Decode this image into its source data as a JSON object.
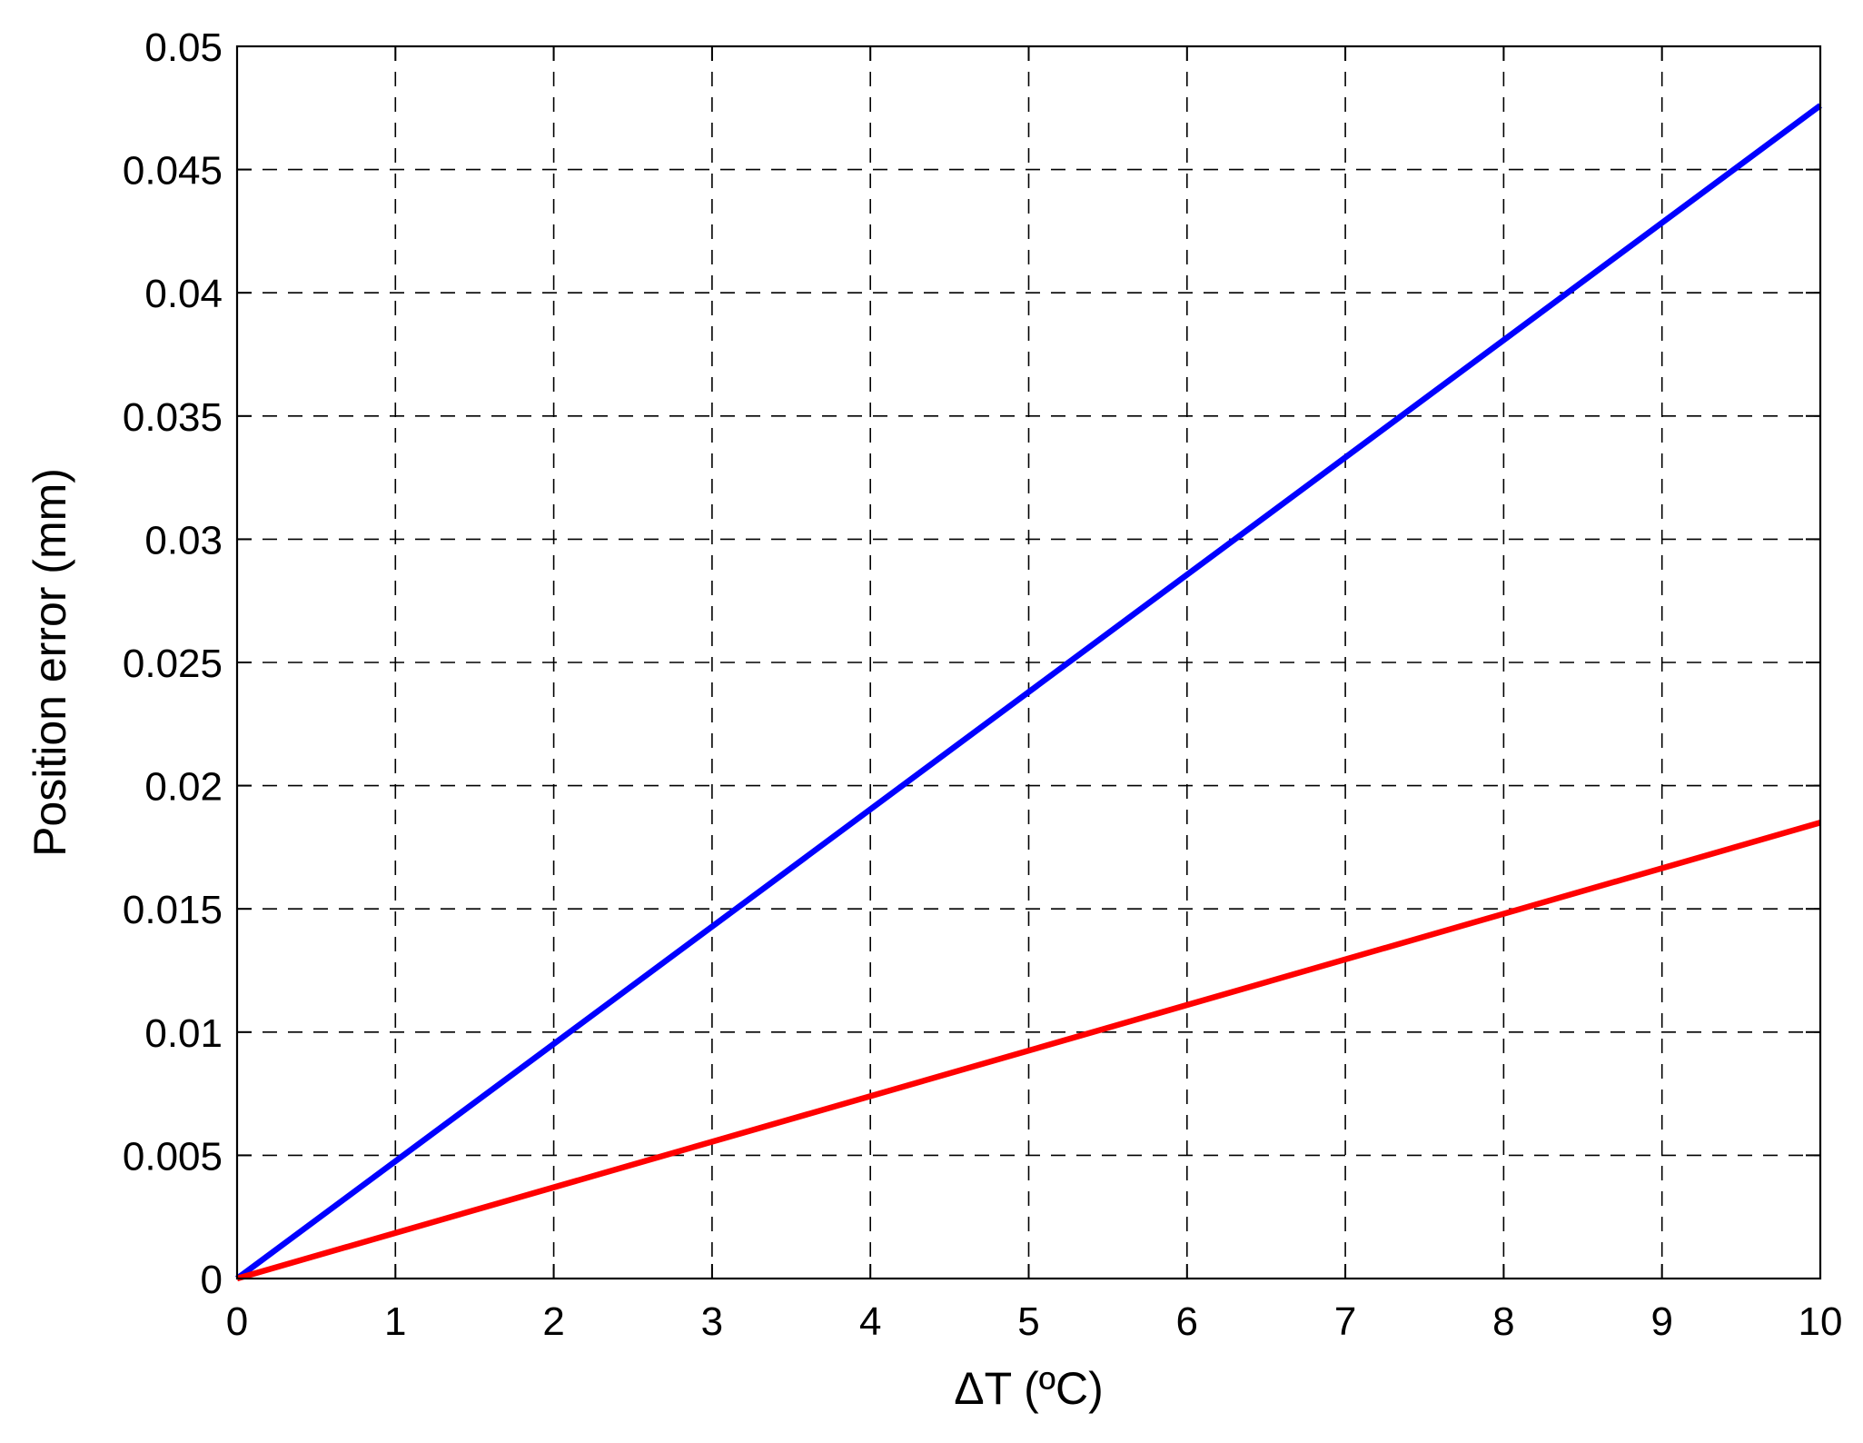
{
  "chart_data": {
    "type": "line",
    "title": "",
    "xlabel": "ΔT (ºC)",
    "ylabel": "Position error (mm)",
    "xlim": [
      0,
      10
    ],
    "ylim": [
      0,
      0.05
    ],
    "x_ticks": [
      0,
      1,
      2,
      3,
      4,
      5,
      6,
      7,
      8,
      9,
      10
    ],
    "x_tick_labels": [
      "0",
      "1",
      "2",
      "3",
      "4",
      "5",
      "6",
      "7",
      "8",
      "9",
      "10"
    ],
    "y_ticks": [
      0,
      0.005,
      0.01,
      0.015,
      0.02,
      0.025,
      0.03,
      0.035,
      0.04,
      0.045,
      0.05
    ],
    "y_tick_labels": [
      "0",
      "0.005",
      "0.01",
      "0.015",
      "0.02",
      "0.025",
      "0.03",
      "0.035",
      "0.04",
      "0.045",
      "0.05"
    ],
    "grid": true,
    "legend": false,
    "series": [
      {
        "color": "#0000ff",
        "x": [
          0,
          10
        ],
        "y": [
          0,
          0.0476
        ]
      },
      {
        "color": "#ff0000",
        "x": [
          0,
          10
        ],
        "y": [
          0,
          0.0185
        ]
      }
    ]
  }
}
